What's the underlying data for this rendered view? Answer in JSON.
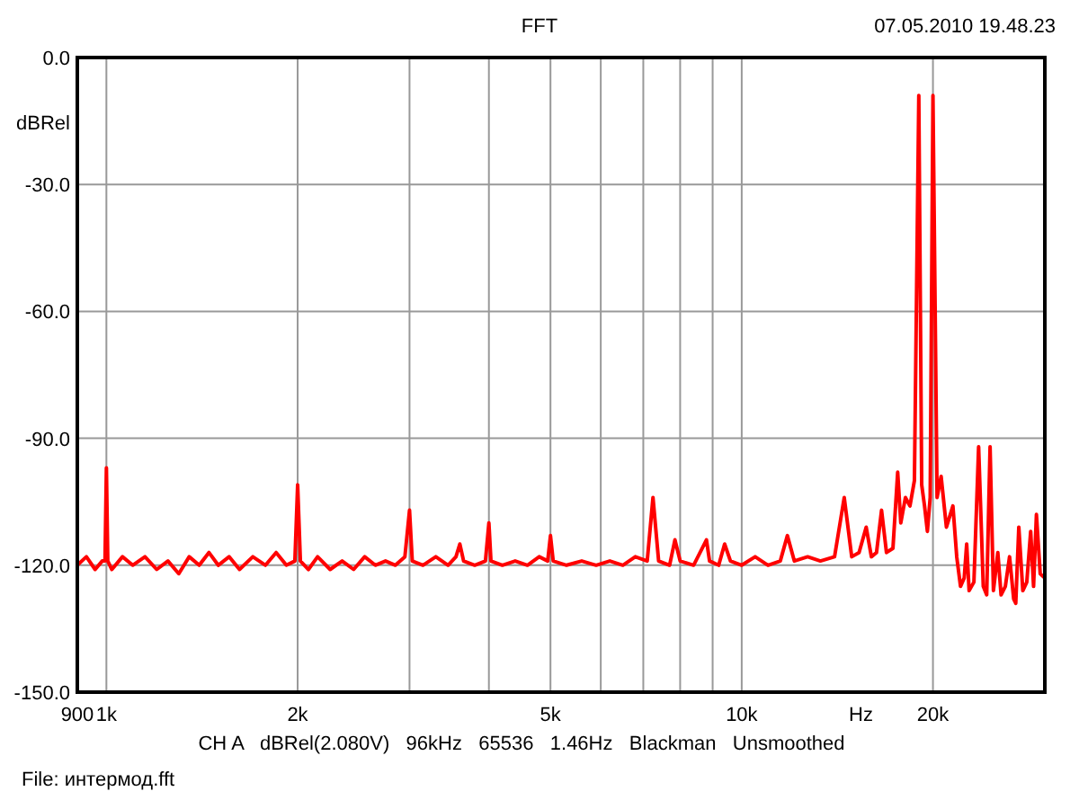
{
  "chart_data": {
    "type": "line",
    "title": "FFT",
    "xlabel": "Hz",
    "ylabel": "dBRel",
    "log": "x",
    "grid": true,
    "annotations": [
      "07.05.2010 19.48.23",
      "CH A   dBRel(2.080V)   96kHz   65536   1.46Hz   Blackman   Unsmoothed",
      "File: интермод.fft"
    ],
    "xlim": [
      900,
      30000
    ],
    "ylim": [
      -150,
      0
    ],
    "xticks": [
      900,
      {
        "value": 1000,
        "label": "1k"
      },
      {
        "value": 2000,
        "label": "2k"
      },
      {
        "value": 3000,
        "label": null
      },
      {
        "value": 4000,
        "label": null
      },
      {
        "value": 5000,
        "label": "5k"
      },
      {
        "value": 6000,
        "label": null
      },
      {
        "value": 7000,
        "label": null
      },
      {
        "value": 8000,
        "label": null
      },
      {
        "value": 9000,
        "label": null
      },
      {
        "value": 10000,
        "label": "10k"
      },
      {
        "value": 20000,
        "label": "20k"
      }
    ],
    "yticks": [
      {
        "value": 0,
        "label": "0.0"
      },
      {
        "value": -30,
        "label": "-30.0"
      },
      {
        "value": -60,
        "label": "-60.0"
      },
      {
        "value": -90,
        "label": "-90.0"
      },
      {
        "value": -120,
        "label": "-120.0"
      },
      {
        "value": -150,
        "label": "-150.0"
      }
    ],
    "series": [
      {
        "color": "#ff0000",
        "x": [
          900,
          930,
          960,
          985,
          995,
          1000,
          1005,
          1020,
          1060,
          1100,
          1150,
          1200,
          1250,
          1300,
          1350,
          1400,
          1450,
          1500,
          1560,
          1620,
          1700,
          1780,
          1850,
          1920,
          1980,
          2000,
          2020,
          2080,
          2150,
          2250,
          2350,
          2450,
          2550,
          2650,
          2750,
          2850,
          2950,
          3000,
          3030,
          3150,
          3300,
          3450,
          3550,
          3600,
          3650,
          3800,
          3950,
          4000,
          4030,
          4200,
          4400,
          4600,
          4800,
          4950,
          5000,
          5050,
          5300,
          5600,
          5900,
          6200,
          6500,
          6800,
          7100,
          7250,
          7400,
          7700,
          7850,
          8000,
          8400,
          8800,
          8900,
          9200,
          9400,
          9600,
          10000,
          10500,
          11000,
          11500,
          11800,
          12100,
          12700,
          13300,
          14000,
          14500,
          14900,
          15300,
          15700,
          16000,
          16300,
          16600,
          16900,
          17300,
          17600,
          17800,
          18100,
          18400,
          18700,
          19000,
          19200,
          19400,
          19600,
          19800,
          20000,
          20300,
          20600,
          21000,
          21500,
          21800,
          22100,
          22400,
          22600,
          22800,
          23200,
          23600,
          24000,
          24300,
          24600,
          24900,
          25300,
          25600,
          26000,
          26400,
          26800,
          27000,
          27300,
          27700,
          28100,
          28500,
          28800,
          29100,
          29500,
          30000
        ],
        "values": [
          -120,
          -118,
          -121,
          -119,
          -119,
          -97,
          -119,
          -121,
          -118,
          -120,
          -118,
          -121,
          -119,
          -122,
          -118,
          -120,
          -117,
          -120,
          -118,
          -121,
          -118,
          -120,
          -117,
          -120,
          -119,
          -101,
          -119,
          -121,
          -118,
          -121,
          -119,
          -121,
          -118,
          -120,
          -119,
          -120,
          -118,
          -107,
          -119,
          -120,
          -118,
          -120,
          -118,
          -115,
          -119,
          -120,
          -119,
          -110,
          -119,
          -120,
          -119,
          -120,
          -118,
          -119,
          -113,
          -119,
          -120,
          -119,
          -120,
          -119,
          -120,
          -118,
          -119,
          -104,
          -119,
          -120,
          -114,
          -119,
          -120,
          -114,
          -119,
          -120,
          -115,
          -119,
          -120,
          -118,
          -120,
          -119,
          -113,
          -119,
          -118,
          -119,
          -118,
          -104,
          -118,
          -117,
          -111,
          -118,
          -117,
          -107,
          -117,
          -116,
          -98,
          -110,
          -104,
          -106,
          -100,
          -9,
          -101,
          -106,
          -112,
          -104,
          -9,
          -104,
          -99,
          -111,
          -106,
          -118,
          -125,
          -123,
          -115,
          -126,
          -124,
          -92,
          -125,
          -127,
          -92,
          -126,
          -117,
          -127,
          -125,
          -118,
          -128,
          -129,
          -111,
          -126,
          -124,
          -112,
          -125,
          -108,
          -122,
          -123
        ]
      }
    ]
  }
}
